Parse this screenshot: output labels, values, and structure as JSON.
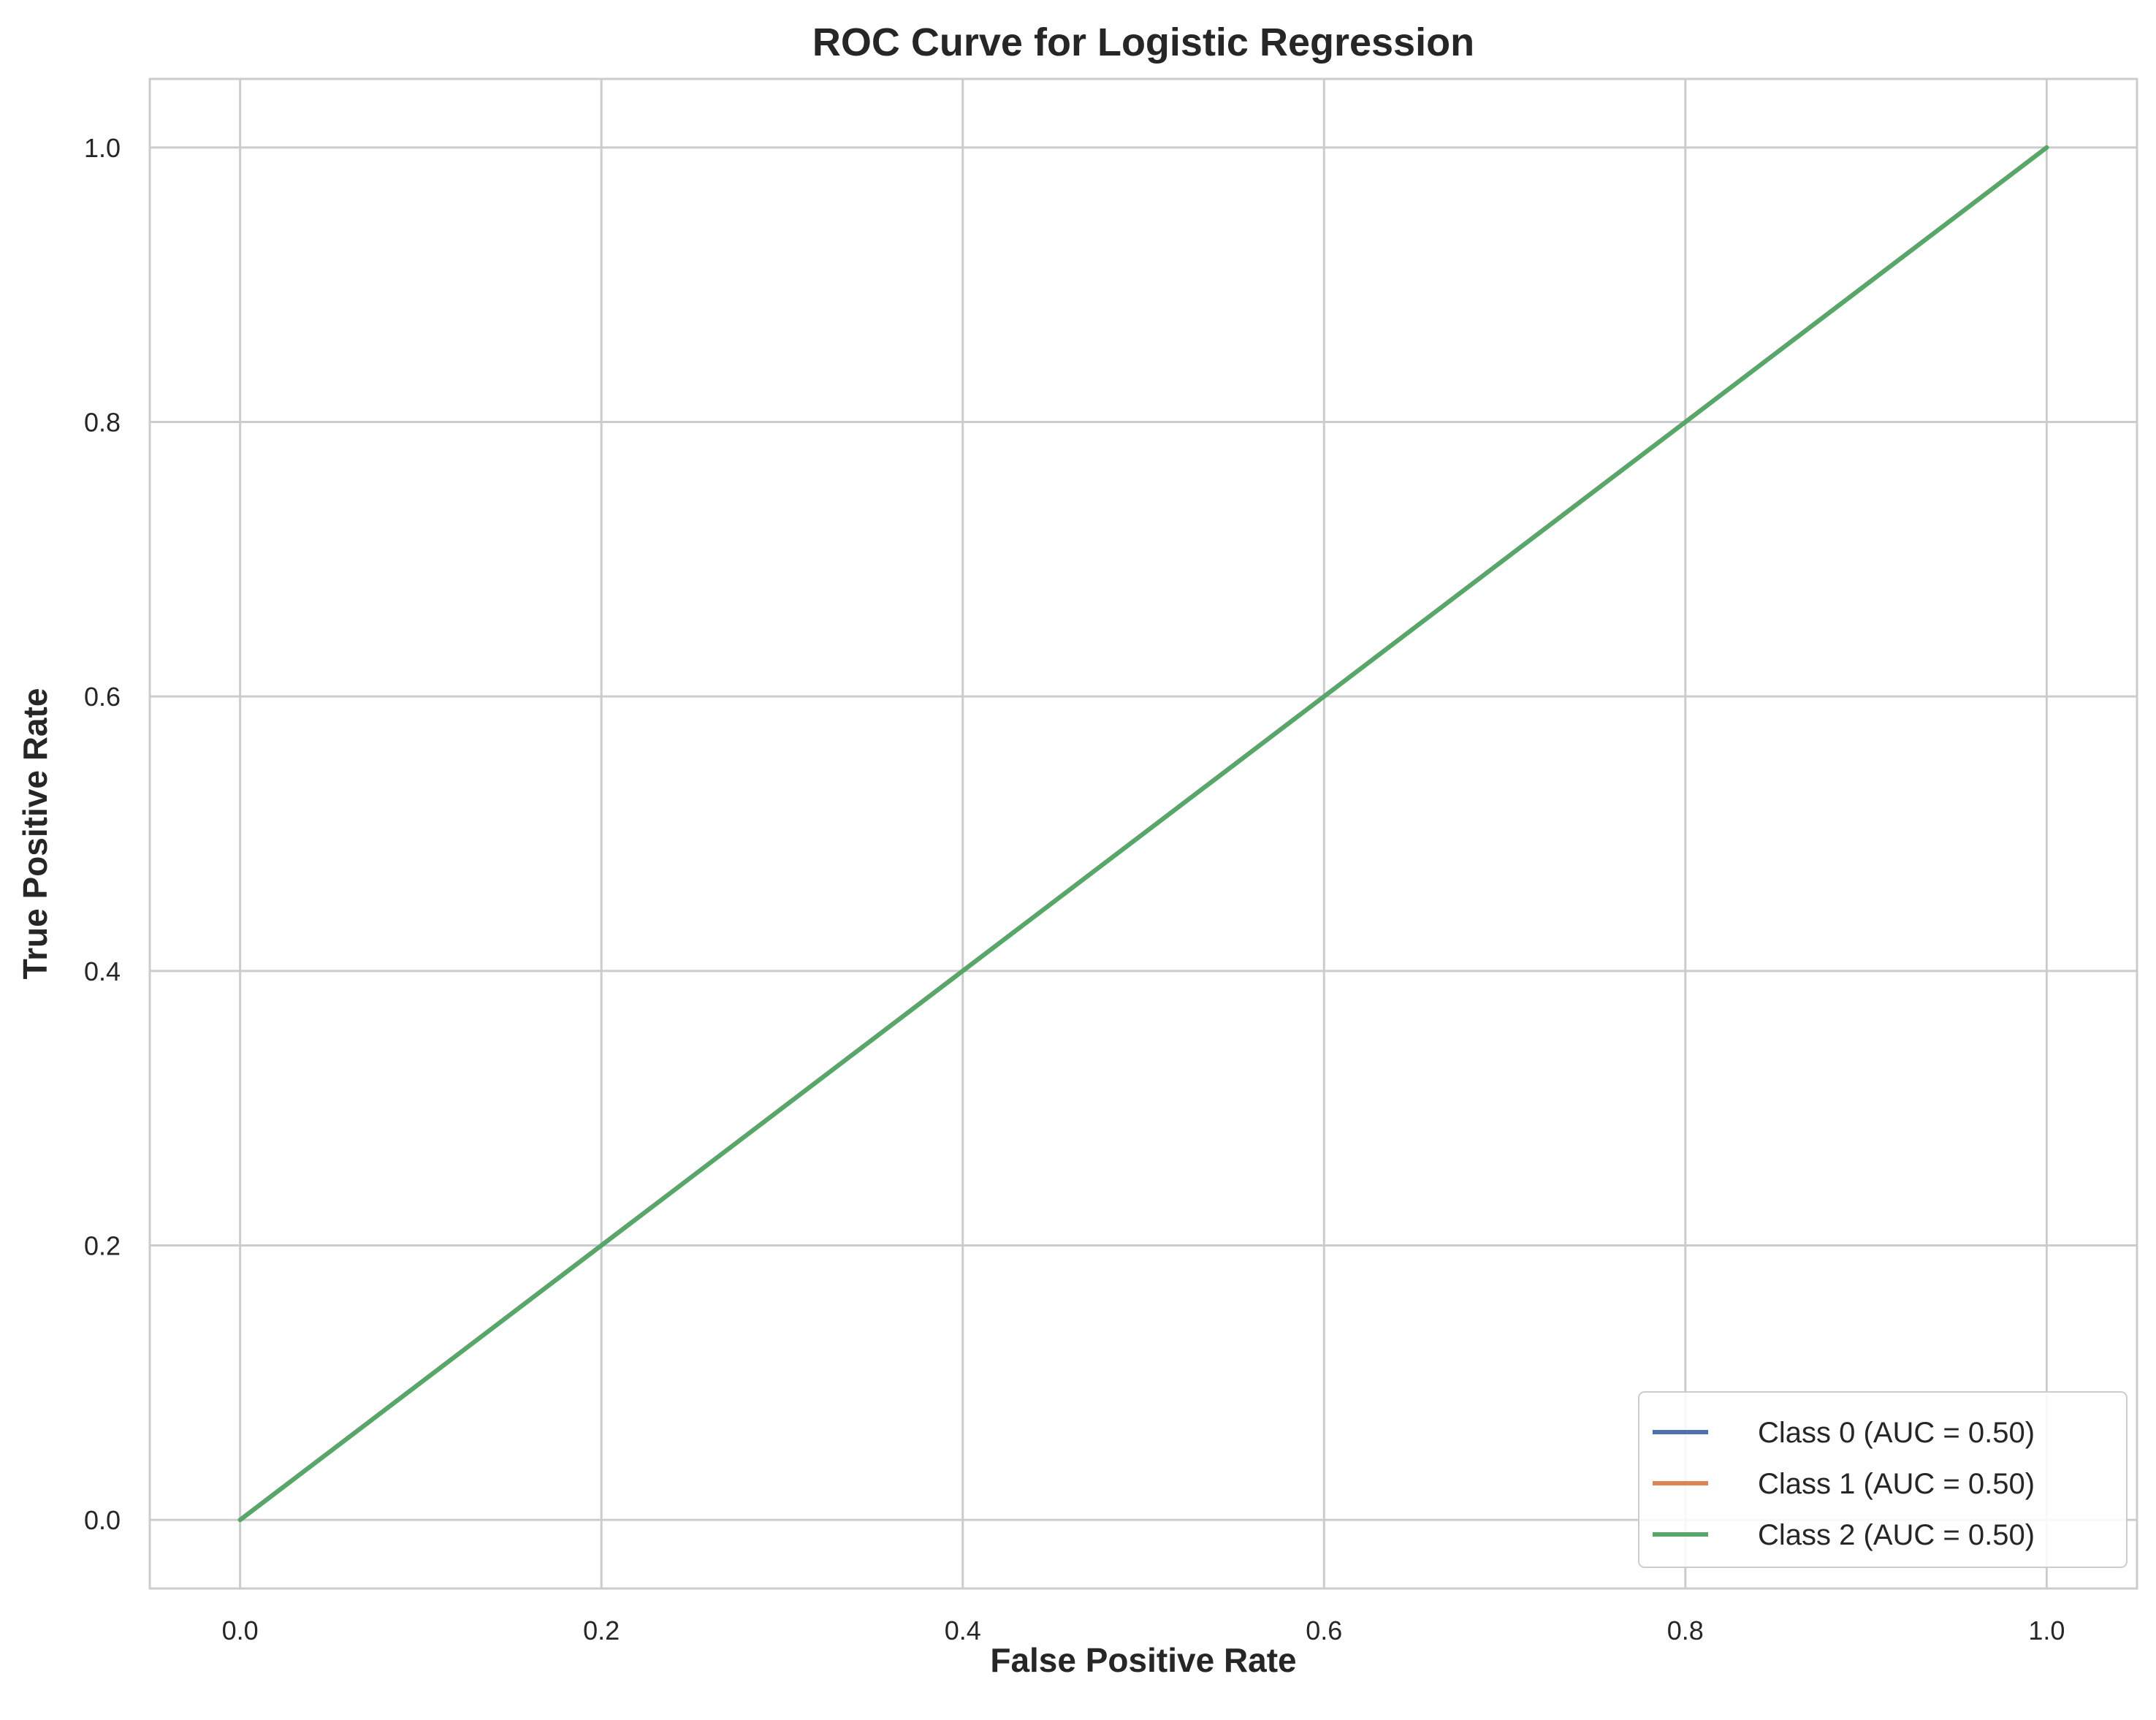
{
  "chart_data": {
    "type": "line",
    "title": "ROC Curve for Logistic Regression",
    "xlabel": "False Positive Rate",
    "ylabel": "True Positive Rate",
    "xlim": [
      -0.05,
      1.05
    ],
    "ylim": [
      -0.05,
      1.05
    ],
    "xticks": [
      "0.0",
      "0.2",
      "0.4",
      "0.6",
      "0.8",
      "1.0"
    ],
    "yticks": [
      "0.0",
      "0.2",
      "0.4",
      "0.6",
      "0.8",
      "1.0"
    ],
    "grid": true,
    "legend_position": "bottom-right",
    "series": [
      {
        "name": "Class 0 (AUC = 0.50)",
        "color": "#4c72b0",
        "x": [
          0.0,
          1.0
        ],
        "y": [
          0.0,
          1.0
        ]
      },
      {
        "name": "Class 1 (AUC = 0.50)",
        "color": "#dd8452",
        "x": [
          0.0,
          1.0
        ],
        "y": [
          0.0,
          1.0
        ]
      },
      {
        "name": "Class 2 (AUC = 0.50)",
        "color": "#55a868",
        "x": [
          0.0,
          1.0
        ],
        "y": [
          0.0,
          1.0
        ]
      }
    ]
  }
}
